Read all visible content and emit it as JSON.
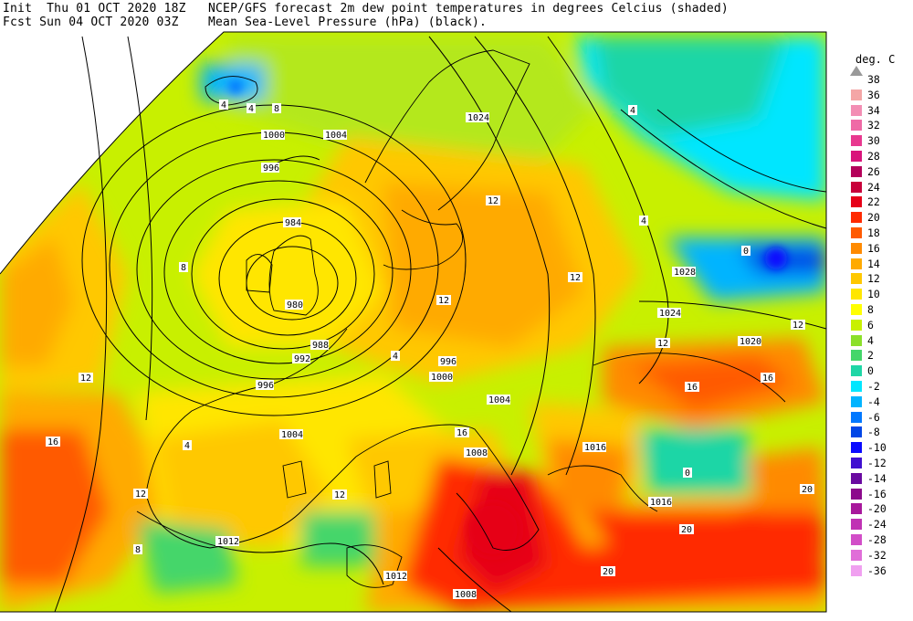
{
  "header": {
    "line1_left": "Init  Thu 01 OCT 2020 18Z",
    "line1_right": "NCEP/GFS forecast 2m dew point temperatures in degrees Celcius (shaded)",
    "line2_left": "Fcst Sun 04 OCT 2020 03Z",
    "line2_right": "Mean Sea-Level Pressure (hPa) (black)."
  },
  "legend": {
    "unit": "deg. C",
    "items": [
      {
        "label": "38",
        "color": "#999999"
      },
      {
        "label": "36",
        "color": "#f4a6a6"
      },
      {
        "label": "34",
        "color": "#f38eb4"
      },
      {
        "label": "32",
        "color": "#ef6aa6"
      },
      {
        "label": "30",
        "color": "#e8388f"
      },
      {
        "label": "28",
        "color": "#d9147b"
      },
      {
        "label": "26",
        "color": "#b4005a"
      },
      {
        "label": "24",
        "color": "#c8003a"
      },
      {
        "label": "22",
        "color": "#e60018"
      },
      {
        "label": "20",
        "color": "#ff2a00"
      },
      {
        "label": "18",
        "color": "#ff5a00"
      },
      {
        "label": "16",
        "color": "#ff8a00"
      },
      {
        "label": "14",
        "color": "#ffaa00"
      },
      {
        "label": "12",
        "color": "#ffc800"
      },
      {
        "label": "10",
        "color": "#ffe600"
      },
      {
        "label": "8",
        "color": "#ffff00"
      },
      {
        "label": "6",
        "color": "#c8f000"
      },
      {
        "label": "4",
        "color": "#8be02a"
      },
      {
        "label": "2",
        "color": "#44d66a"
      },
      {
        "label": "0",
        "color": "#1fd6a6"
      },
      {
        "label": "-2",
        "color": "#00e6ff"
      },
      {
        "label": "-4",
        "color": "#00b4ff"
      },
      {
        "label": "-6",
        "color": "#0078ff"
      },
      {
        "label": "-8",
        "color": "#0046e6"
      },
      {
        "label": "-10",
        "color": "#0a0aff"
      },
      {
        "label": "-12",
        "color": "#4010d0"
      },
      {
        "label": "-14",
        "color": "#6a0aa0"
      },
      {
        "label": "-16",
        "color": "#8c0a8c"
      },
      {
        "label": "-20",
        "color": "#a8189c"
      },
      {
        "label": "-24",
        "color": "#c032b4"
      },
      {
        "label": "-28",
        "color": "#d24ec8"
      },
      {
        "label": "-32",
        "color": "#e06ed8"
      },
      {
        "label": "-36",
        "color": "#f0a0f0"
      }
    ]
  },
  "isobar_labels": [
    "1000",
    "1004",
    "996",
    "992",
    "988",
    "984",
    "980",
    "1024",
    "1028",
    "1020",
    "1016",
    "1012",
    "1008"
  ],
  "dewpoint_labels": [
    "4",
    "8",
    "12",
    "16",
    "20",
    "0"
  ]
}
